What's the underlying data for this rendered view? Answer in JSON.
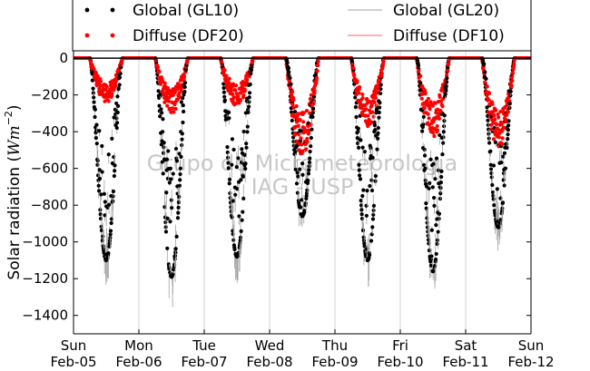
{
  "chart_data": {
    "type": "scatter",
    "title": "",
    "ylabel": "Solar radiation (Wm^-2)",
    "ylim": [
      -1500,
      50
    ],
    "yticks": [
      0,
      -200,
      -400,
      -600,
      -800,
      -1000,
      -1200,
      -1400
    ],
    "x_ticks": [
      {
        "day": "Sun",
        "date": "Feb-05"
      },
      {
        "day": "Mon",
        "date": "Feb-06"
      },
      {
        "day": "Tue",
        "date": "Feb-07"
      },
      {
        "day": "Wed",
        "date": "Feb-08"
      },
      {
        "day": "Thu",
        "date": "Feb-09"
      },
      {
        "day": "Fri",
        "date": "Feb-10"
      },
      {
        "day": "Sat",
        "date": "Feb-11"
      },
      {
        "day": "Sun",
        "date": "Feb-12"
      }
    ],
    "grid_x": true,
    "grid_y": false,
    "legend_placement": "top",
    "watermark": [
      "Grupo de Micrometeorologia",
      "IAG - USP"
    ],
    "series": [
      {
        "name": "Global (GL10)",
        "style": "dots",
        "color": "#000000"
      },
      {
        "name": "Diffuse (DF20)",
        "style": "dots",
        "color": "#ff0000"
      },
      {
        "name": "Global (GL20)",
        "style": "line",
        "color": "#a0a0a0"
      },
      {
        "name": "Diffuse (DF10)",
        "style": "line",
        "color": "#ff6060"
      }
    ],
    "daily_minimum": {
      "Global (GL10)": [
        -1100,
        -1190,
        -1080,
        -860,
        -1100,
        -1160,
        -920
      ],
      "Diffuse (DF20)": [
        -240,
        -300,
        -260,
        -530,
        -380,
        -430,
        -500
      ]
    }
  }
}
